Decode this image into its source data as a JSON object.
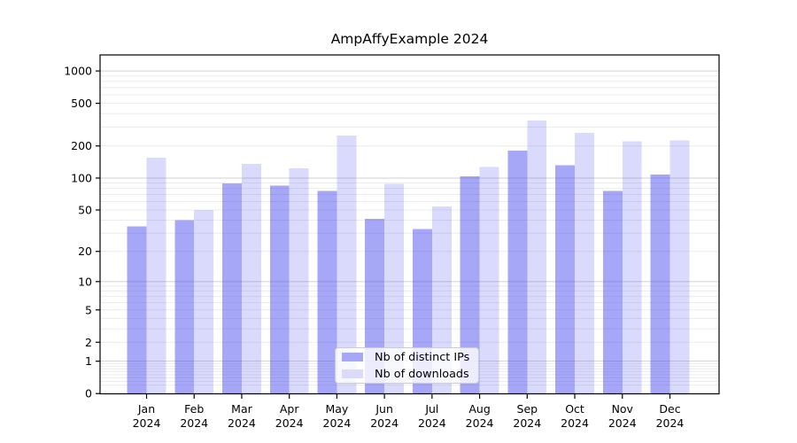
{
  "title": "AmpAffyExample 2024",
  "chart_data": {
    "type": "bar",
    "title": "AmpAffyExample 2024",
    "xlabel": "",
    "ylabel": "",
    "scale": "log1p",
    "grid": true,
    "ylim": [
      0,
      1410
    ],
    "y_ticks": [
      0,
      1,
      2,
      5,
      10,
      20,
      50,
      100,
      200,
      500,
      1000
    ],
    "categories": [
      "Jan",
      "Feb",
      "Mar",
      "Apr",
      "May",
      "Jun",
      "Jul",
      "Aug",
      "Sep",
      "Oct",
      "Nov",
      "Dec"
    ],
    "category_year": "2024",
    "legend_position": "lower center",
    "series": [
      {
        "name": "Nb of distinct IPs",
        "values": [
          35,
          40,
          89,
          85,
          76,
          41,
          33,
          104,
          180,
          132,
          76,
          108
        ],
        "fill": "#3c3cf0",
        "fill_opacity": 0.45,
        "legend_hex": "#a7a7f8"
      },
      {
        "name": "Nb of downloads",
        "values": [
          155,
          50,
          136,
          123,
          250,
          88,
          54,
          127,
          345,
          265,
          220,
          226
        ],
        "fill": "#3c3cf0",
        "fill_opacity": 0.19,
        "legend_hex": "#dadafb"
      }
    ]
  },
  "colors": {
    "background": "#ffffff",
    "axis": "#000000",
    "major_grid": "#d2d2d2",
    "minor_grid": "#ececec",
    "tick_text": "#000000",
    "legend_border": "#cccccc"
  }
}
